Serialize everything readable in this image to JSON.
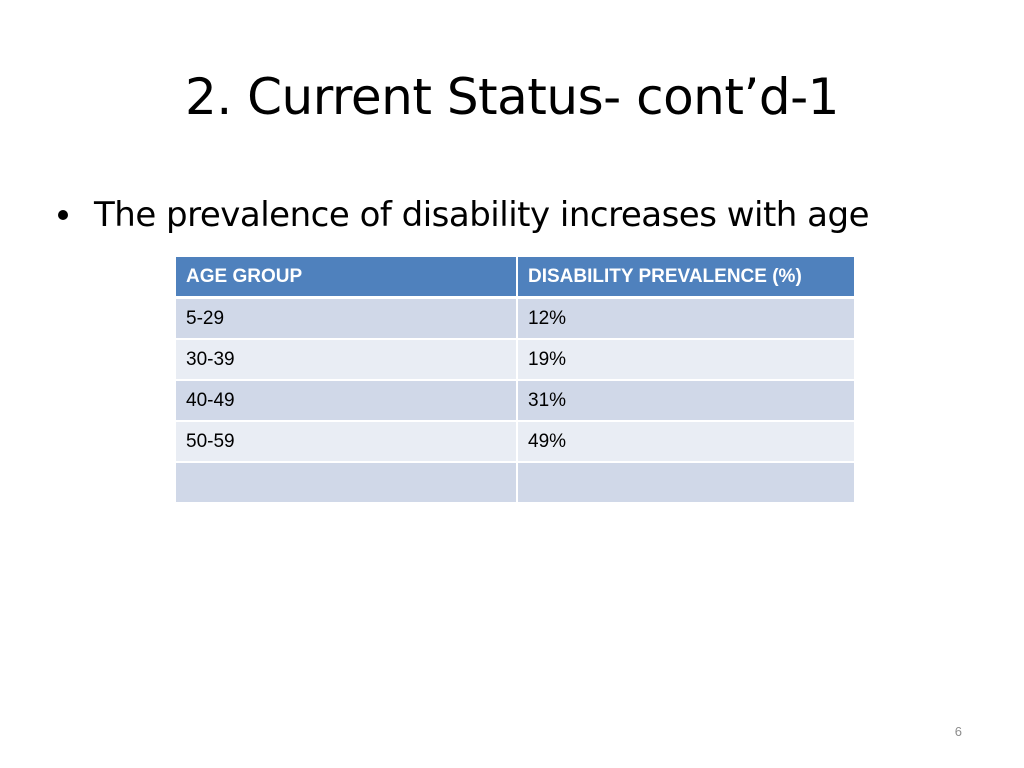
{
  "slide": {
    "title": "2. Current Status- cont’d-1",
    "bullet": "The prevalence of disability increases with age",
    "page_number": "6"
  },
  "table": {
    "headers": [
      "AGE GROUP",
      "DISABILITY PREVALENCE (%)"
    ],
    "rows": [
      [
        "5-29",
        "12%"
      ],
      [
        "30-39",
        "19%"
      ],
      [
        "40-49",
        "31%"
      ],
      [
        "50-59",
        "49%"
      ],
      [
        "",
        ""
      ]
    ]
  },
  "colors": {
    "header_bg": "#4f81bd",
    "row_odd_bg": "#d0d8e8",
    "row_even_bg": "#e9edf4"
  }
}
